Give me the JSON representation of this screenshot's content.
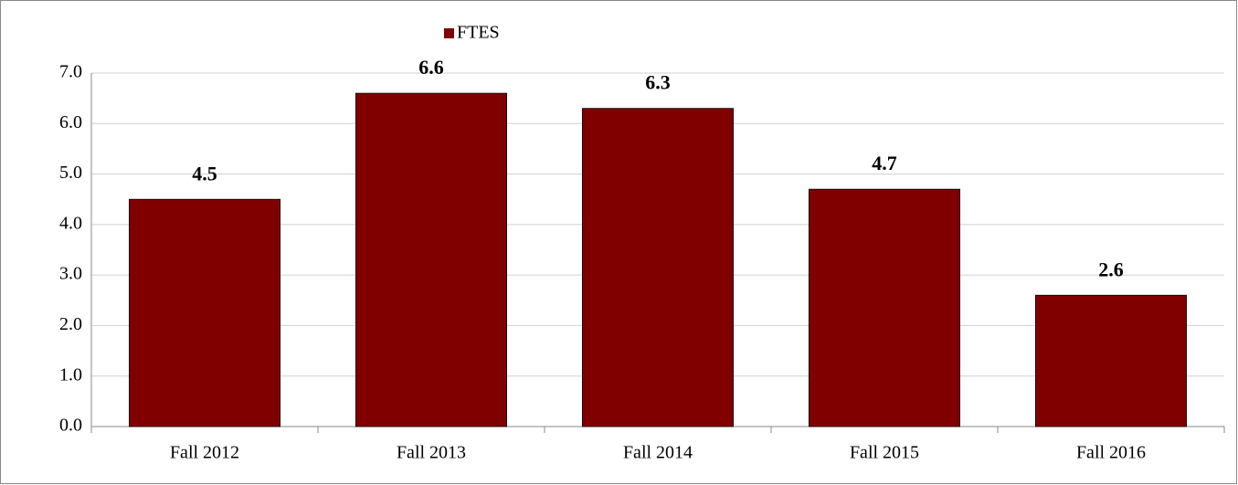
{
  "chart_data": {
    "type": "bar",
    "categories": [
      "Fall 2012",
      "Fall 2013",
      "Fall 2014",
      "Fall 2015",
      "Fall 2016"
    ],
    "series": [
      {
        "name": "FTES",
        "color": "#800000",
        "values": [
          4.5,
          6.6,
          6.3,
          4.7,
          2.6
        ]
      }
    ],
    "ylim": [
      0,
      7
    ],
    "yticks": [
      {
        "value": 0,
        "label": "0.0"
      },
      {
        "value": 1,
        "label": "1.0"
      },
      {
        "value": 2,
        "label": "2.0"
      },
      {
        "value": 3,
        "label": "3.0"
      },
      {
        "value": 4,
        "label": "4.0"
      },
      {
        "value": 5,
        "label": "5.0"
      },
      {
        "value": 6,
        "label": "6.0"
      },
      {
        "value": 7,
        "label": "7.0"
      }
    ],
    "grid": true,
    "legend": "top"
  }
}
